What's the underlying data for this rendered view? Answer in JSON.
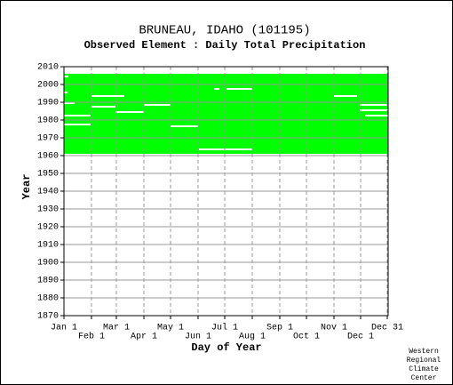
{
  "chart_data": {
    "type": "availability",
    "title": "BRUNEAU, IDAHO   (101195)",
    "subtitle": "Observed Element : Daily Total Precipitation",
    "xlabel": "Day of Year",
    "ylabel": "Year",
    "credit": [
      "Western",
      "Regional",
      "Climate",
      "Center"
    ],
    "color": "#00ff00",
    "grid": true,
    "xlim": [
      1,
      365
    ],
    "ylim": [
      1870,
      2010
    ],
    "yticks": [
      1870,
      1880,
      1890,
      1900,
      1910,
      1920,
      1930,
      1940,
      1950,
      1960,
      1970,
      1980,
      1990,
      2000,
      2010
    ],
    "xticks": [
      {
        "value": 1,
        "label": "Jan 1"
      },
      {
        "value": 32,
        "label": "Feb 1"
      },
      {
        "value": 60,
        "label": "Mar 1"
      },
      {
        "value": 91,
        "label": "Apr 1"
      },
      {
        "value": 121,
        "label": "May 1"
      },
      {
        "value": 152,
        "label": "Jun 1"
      },
      {
        "value": 182,
        "label": "Jul 1"
      },
      {
        "value": 213,
        "label": "Aug 1"
      },
      {
        "value": 244,
        "label": "Sep 1"
      },
      {
        "value": 274,
        "label": "Oct 1"
      },
      {
        "value": 305,
        "label": "Nov 1"
      },
      {
        "value": 335,
        "label": "Dec 1"
      },
      {
        "value": 365,
        "label": "Dec 31"
      }
    ],
    "coverage": [
      1961,
      2005
    ],
    "gaps": [
      {
        "year": 1993,
        "start": 32,
        "end": 68
      },
      {
        "year": 1987,
        "start": 32,
        "end": 58
      },
      {
        "year": 1984,
        "start": 59,
        "end": 90
      },
      {
        "year": 1988,
        "start": 91,
        "end": 120
      },
      {
        "year": 1976,
        "start": 121,
        "end": 151
      },
      {
        "year": 1997,
        "start": 184,
        "end": 212
      },
      {
        "year": 1997,
        "start": 170,
        "end": 175
      },
      {
        "year": 1963,
        "start": 153,
        "end": 212
      },
      {
        "year": 1993,
        "start": 305,
        "end": 330
      },
      {
        "year": 1982,
        "start": 1,
        "end": 30
      },
      {
        "year": 1977,
        "start": 1,
        "end": 30
      },
      {
        "year": 1989,
        "start": 1,
        "end": 12
      },
      {
        "year": 1988,
        "start": 334,
        "end": 365
      },
      {
        "year": 1985,
        "start": 334,
        "end": 365
      },
      {
        "year": 1982,
        "start": 340,
        "end": 365
      },
      {
        "year": 2004,
        "start": 1,
        "end": 5
      },
      {
        "year": 1995,
        "start": 1,
        "end": 4
      }
    ]
  }
}
